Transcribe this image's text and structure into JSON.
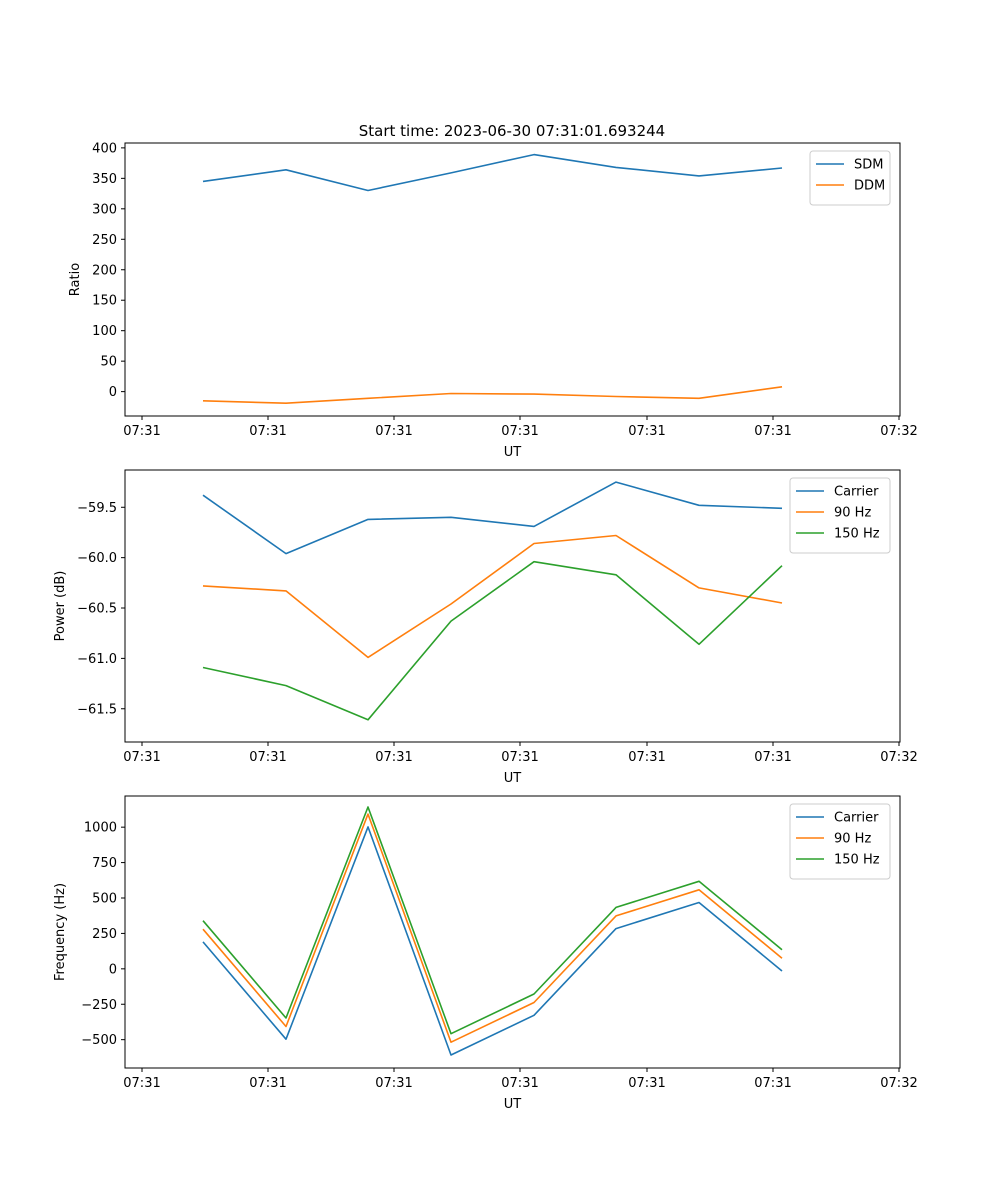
{
  "figure": {
    "title": "Start time: 2023-06-30 07:31:01.693244"
  },
  "colors": {
    "blue": "#1f77b4",
    "orange": "#ff7f0e",
    "green": "#2ca02c"
  },
  "chart_data": [
    {
      "type": "line",
      "xlabel": "UT",
      "ylabel": "Ratio",
      "x_ticks": [
        "07:31",
        "07:31",
        "07:31",
        "07:31",
        "07:31",
        "07:31",
        "07:32"
      ],
      "y_ticks": [
        "0",
        "50",
        "100",
        "150",
        "200",
        "250",
        "300",
        "350",
        "400"
      ],
      "ylim": [
        -40,
        408
      ],
      "legend": "upper right",
      "series": [
        {
          "name": "SDM",
          "color": "#1f77b4",
          "values": [
            345,
            364,
            330,
            359,
            389,
            368,
            354,
            367
          ]
        },
        {
          "name": "DDM",
          "color": "#ff7f0e",
          "values": [
            -15,
            -19,
            -11,
            -3,
            -4,
            -8,
            -11,
            8
          ]
        }
      ]
    },
    {
      "type": "line",
      "xlabel": "UT",
      "ylabel": "Power (dB)",
      "x_ticks": [
        "07:31",
        "07:31",
        "07:31",
        "07:31",
        "07:31",
        "07:31",
        "07:32"
      ],
      "y_ticks": [
        "−61.5",
        "−61.0",
        "−60.5",
        "−60.0",
        "−59.5"
      ],
      "ylim": [
        -61.83,
        -59.13
      ],
      "legend": "upper right",
      "series": [
        {
          "name": "Carrier",
          "color": "#1f77b4",
          "values": [
            -59.38,
            -59.96,
            -59.62,
            -59.6,
            -59.69,
            -59.25,
            -59.48,
            -59.51
          ]
        },
        {
          "name": "90 Hz",
          "color": "#ff7f0e",
          "values": [
            -60.28,
            -60.33,
            -60.99,
            -60.46,
            -59.86,
            -59.78,
            -60.3,
            -60.45
          ]
        },
        {
          "name": "150 Hz",
          "color": "#2ca02c",
          "values": [
            -61.09,
            -61.27,
            -61.61,
            -60.63,
            -60.04,
            -60.17,
            -60.86,
            -60.08
          ]
        }
      ]
    },
    {
      "type": "line",
      "xlabel": "UT",
      "ylabel": "Frequency (Hz)",
      "x_ticks": [
        "07:31",
        "07:31",
        "07:31",
        "07:31",
        "07:31",
        "07:31",
        "07:32"
      ],
      "y_ticks": [
        "−500",
        "−250",
        "0",
        "250",
        "500",
        "750",
        "1000"
      ],
      "ylim": [
        -700,
        1220
      ],
      "legend": "upper right",
      "series": [
        {
          "name": "Carrier",
          "color": "#1f77b4",
          "values": [
            190,
            -497,
            1002,
            -608,
            -328,
            284,
            468,
            -15
          ]
        },
        {
          "name": "90 Hz",
          "color": "#ff7f0e",
          "values": [
            280,
            -407,
            1092,
            -518,
            -238,
            374,
            558,
            75
          ]
        },
        {
          "name": "150 Hz",
          "color": "#2ca02c",
          "values": [
            340,
            -347,
            1142,
            -458,
            -178,
            434,
            618,
            135
          ]
        }
      ]
    }
  ]
}
